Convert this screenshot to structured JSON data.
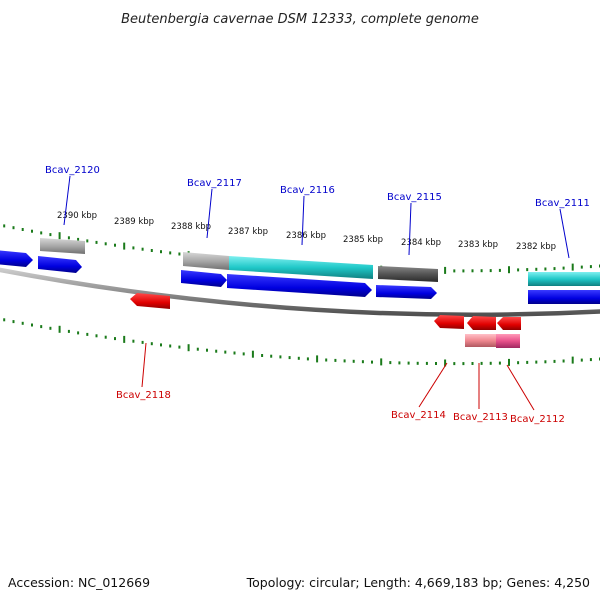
{
  "title": "Beutenbergia cavernae DSM 12333, complete genome",
  "footer": {
    "accession": "Accession: NC_012669",
    "summary": "Topology: circular; Length: 4,669,183 bp; Genes: 4,250"
  },
  "scale": {
    "labels": [
      "2390 kbp",
      "2389 kbp",
      "2388 kbp",
      "2387 kbp",
      "2386 kbp",
      "2385 kbp",
      "2384 kbp",
      "2383 kbp",
      "2382 kbp"
    ]
  },
  "genes": {
    "forward": [
      "Bcav_2120",
      "Bcav_2117",
      "Bcav_2116",
      "Bcav_2115",
      "Bcav_2111"
    ],
    "reverse": [
      "Bcav_2118",
      "Bcav_2114",
      "Bcav_2113",
      "Bcav_2112"
    ]
  },
  "colors": {
    "cds_forward": "#0000e6",
    "cds_reverse": "#e60000",
    "rna_teal": "#20c8c8",
    "gene_gray": "#a0a0a0",
    "gene_dark": "#555555",
    "pink": "#e8508a",
    "tick": "#1a7a1a",
    "label_forward": "#0000cc",
    "label_reverse": "#cc0000"
  }
}
